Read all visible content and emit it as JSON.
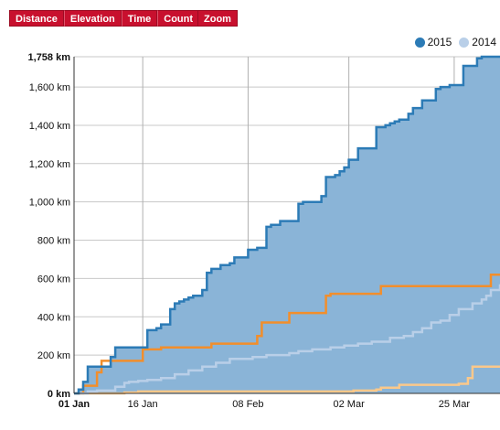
{
  "toolbar": {
    "tabs": [
      "Distance",
      "Elevation",
      "Time",
      "Count"
    ],
    "zoom_label": "Zoom"
  },
  "legend": [
    {
      "label": "2015",
      "color": "#2c7bb6"
    },
    {
      "label": "2014",
      "color": "#b9cfe8"
    }
  ],
  "chart_data": {
    "type": "area",
    "xlabel": "",
    "ylabel": "",
    "x_ticks": [
      "01 Jan",
      "16 Jan",
      "08 Feb",
      "02 Mar",
      "25 Mar"
    ],
    "x_tick_days": [
      1,
      16,
      39,
      61,
      84
    ],
    "y_ticks": [
      "0 km",
      "200 km",
      "400 km",
      "600 km",
      "800 km",
      "1,000 km",
      "1,200 km",
      "1,400 km",
      "1,600 km",
      "1,758 km"
    ],
    "y_tick_values": [
      0,
      200,
      400,
      600,
      800,
      1000,
      1200,
      1400,
      1600,
      1758
    ],
    "ylim": [
      0,
      1758
    ],
    "xlim_days": [
      1,
      94
    ],
    "grid": true,
    "legend_position": "top-right",
    "series": [
      {
        "name": "2015",
        "color": "#2c7bb6",
        "fill": "#8ab4d7",
        "style": "area",
        "day": [
          1,
          2,
          3,
          4,
          5,
          6,
          9,
          10,
          14,
          17,
          19,
          20,
          22,
          23,
          24,
          25,
          26,
          27,
          29,
          30,
          31,
          33,
          35,
          36,
          39,
          41,
          42,
          43,
          44,
          46,
          47,
          48,
          50,
          51,
          53,
          55,
          56,
          58,
          59,
          60,
          61,
          62,
          63,
          65,
          67,
          69,
          70,
          71,
          72,
          74,
          75,
          77,
          80,
          81,
          83,
          86,
          87,
          89,
          90,
          93,
          94
        ],
        "value": [
          0,
          20,
          60,
          140,
          140,
          140,
          190,
          240,
          240,
          330,
          340,
          360,
          440,
          470,
          480,
          490,
          500,
          510,
          540,
          630,
          650,
          670,
          680,
          710,
          750,
          760,
          760,
          870,
          880,
          900,
          900,
          900,
          990,
          1000,
          1000,
          1030,
          1130,
          1140,
          1160,
          1180,
          1220,
          1220,
          1280,
          1280,
          1390,
          1400,
          1410,
          1420,
          1430,
          1460,
          1490,
          1530,
          1590,
          1600,
          1610,
          1710,
          1710,
          1750,
          1758,
          1758,
          1758
        ]
      },
      {
        "name": "2014",
        "color": "#b9cfe8",
        "style": "line",
        "day": [
          1,
          4,
          6,
          10,
          12,
          13,
          15,
          17,
          20,
          23,
          26,
          29,
          32,
          35,
          40,
          43,
          48,
          50,
          53,
          57,
          60,
          63,
          66,
          70,
          73,
          75,
          77,
          79,
          81,
          83,
          85,
          88,
          90,
          91,
          92,
          94
        ],
        "value": [
          0,
          10,
          15,
          35,
          55,
          60,
          65,
          70,
          80,
          100,
          120,
          140,
          160,
          180,
          190,
          200,
          210,
          220,
          230,
          240,
          250,
          260,
          270,
          290,
          300,
          320,
          340,
          370,
          380,
          410,
          440,
          470,
          490,
          510,
          540,
          570
        ]
      },
      {
        "name": "",
        "color": "#f28e2b",
        "style": "line",
        "day": [
          1,
          3,
          6,
          7,
          8,
          14,
          16,
          17,
          20,
          30,
          31,
          41,
          42,
          46,
          48,
          56,
          57,
          66,
          68,
          83,
          85,
          92,
          94
        ],
        "value": [
          0,
          40,
          110,
          170,
          170,
          170,
          230,
          230,
          240,
          240,
          260,
          300,
          370,
          370,
          420,
          510,
          520,
          520,
          560,
          560,
          560,
          620,
          620
        ]
      },
      {
        "name": "",
        "color": "#fbc88a",
        "style": "line",
        "day": [
          1,
          12,
          15,
          48,
          60,
          62,
          67,
          68,
          72,
          85,
          87,
          88,
          94
        ],
        "value": [
          0,
          5,
          10,
          10,
          10,
          15,
          20,
          30,
          45,
          50,
          80,
          140,
          140
        ]
      }
    ]
  }
}
